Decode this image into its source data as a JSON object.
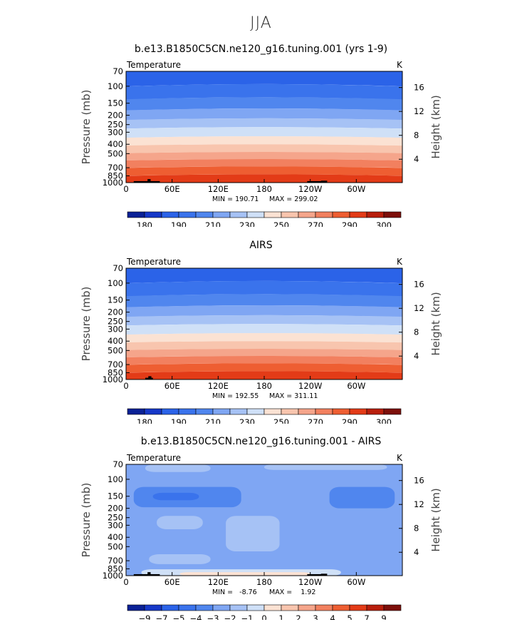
{
  "figure": {
    "super_title": "JJA"
  },
  "chart_data": [
    {
      "type": "heatmap",
      "title": "b.e13.B1850C5CN.ne120_g16.tuning.001 (yrs 1-9)",
      "variable": "Temperature",
      "units": "K",
      "ylabel": "Pressure (mb)",
      "y2label": "Height (km)",
      "xlabel": "",
      "x_tick_labels": [
        "0",
        "60E",
        "120E",
        "180",
        "120W",
        "60W"
      ],
      "x_tick_lons": [
        0,
        60,
        120,
        180,
        240,
        300
      ],
      "xlim": [
        0,
        360
      ],
      "y_tick_labels": [
        "70",
        "100",
        "150",
        "200",
        "250",
        "300",
        "400",
        "500",
        "700",
        "850",
        "1000"
      ],
      "y_tick_values": [
        70,
        100,
        150,
        200,
        250,
        300,
        400,
        500,
        700,
        850,
        1000
      ],
      "ylim_mb": [
        1000,
        70
      ],
      "y2_tick_labels": [
        "4",
        "8",
        "12",
        "16"
      ],
      "y2_tick_values": [
        4,
        8,
        12,
        16
      ],
      "stats": {
        "min_label": "MIN = 190.71",
        "max_label": "MAX = 299.02",
        "min": 190.71,
        "max": 299.02
      },
      "colorbar_labels": [
        "180",
        "190",
        "210",
        "230",
        "250",
        "270",
        "290",
        "300"
      ],
      "level_bands": [
        {
          "top_mb": 70,
          "bottom_mb": 95,
          "color": "#2B63E8"
        },
        {
          "top_mb": 95,
          "bottom_mb": 130,
          "color": "#3A73EC"
        },
        {
          "top_mb": 130,
          "bottom_mb": 170,
          "color": "#5086EE"
        },
        {
          "top_mb": 170,
          "bottom_mb": 215,
          "color": "#7FA6F3"
        },
        {
          "top_mb": 215,
          "bottom_mb": 265,
          "color": "#A6C2F5"
        },
        {
          "top_mb": 265,
          "bottom_mb": 330,
          "color": "#CFE0F7"
        },
        {
          "top_mb": 330,
          "bottom_mb": 400,
          "color": "#FBE2D3"
        },
        {
          "top_mb": 400,
          "bottom_mb": 480,
          "color": "#F8C5AE"
        },
        {
          "top_mb": 480,
          "bottom_mb": 570,
          "color": "#F5A58B"
        },
        {
          "top_mb": 570,
          "bottom_mb": 680,
          "color": "#F2805F"
        },
        {
          "top_mb": 680,
          "bottom_mb": 820,
          "color": "#EE5E32"
        },
        {
          "top_mb": 820,
          "bottom_mb": 1000,
          "color": "#E33B17"
        }
      ]
    },
    {
      "type": "heatmap",
      "title": "AIRS",
      "variable": "Temperature",
      "units": "K",
      "ylabel": "Pressure (mb)",
      "y2label": "Height (km)",
      "xlabel": "",
      "x_tick_labels": [
        "0",
        "60E",
        "120E",
        "180",
        "120W",
        "60W"
      ],
      "x_tick_lons": [
        0,
        60,
        120,
        180,
        240,
        300
      ],
      "xlim": [
        0,
        360
      ],
      "y_tick_labels": [
        "70",
        "100",
        "150",
        "200",
        "250",
        "300",
        "400",
        "500",
        "700",
        "850",
        "1000"
      ],
      "y_tick_values": [
        70,
        100,
        150,
        200,
        250,
        300,
        400,
        500,
        700,
        850,
        1000
      ],
      "ylim_mb": [
        1000,
        70
      ],
      "y2_tick_labels": [
        "4",
        "8",
        "12",
        "16"
      ],
      "y2_tick_values": [
        4,
        8,
        12,
        16
      ],
      "stats": {
        "min_label": "MIN = 192.55",
        "max_label": "MAX = 311.11",
        "min": 192.55,
        "max": 311.11
      },
      "colorbar_labels": [
        "180",
        "190",
        "210",
        "230",
        "250",
        "270",
        "290",
        "300"
      ],
      "level_bands": [
        {
          "top_mb": 70,
          "bottom_mb": 95,
          "color": "#2B63E8"
        },
        {
          "top_mb": 95,
          "bottom_mb": 130,
          "color": "#3A73EC"
        },
        {
          "top_mb": 130,
          "bottom_mb": 170,
          "color": "#5086EE"
        },
        {
          "top_mb": 170,
          "bottom_mb": 215,
          "color": "#7FA6F3"
        },
        {
          "top_mb": 215,
          "bottom_mb": 265,
          "color": "#A6C2F5"
        },
        {
          "top_mb": 265,
          "bottom_mb": 330,
          "color": "#CFE0F7"
        },
        {
          "top_mb": 330,
          "bottom_mb": 400,
          "color": "#FBE2D3"
        },
        {
          "top_mb": 400,
          "bottom_mb": 480,
          "color": "#F8C5AE"
        },
        {
          "top_mb": 480,
          "bottom_mb": 570,
          "color": "#F5A58B"
        },
        {
          "top_mb": 570,
          "bottom_mb": 680,
          "color": "#F2805F"
        },
        {
          "top_mb": 680,
          "bottom_mb": 820,
          "color": "#EE5E32"
        },
        {
          "top_mb": 820,
          "bottom_mb": 1000,
          "color": "#E33B17"
        }
      ]
    },
    {
      "type": "heatmap",
      "title": "b.e13.B1850C5CN.ne120_g16.tuning.001 - AIRS",
      "variable": "Temperature",
      "units": "K",
      "ylabel": "Pressure (mb)",
      "y2label": "Height (km)",
      "xlabel": "",
      "x_tick_labels": [
        "0",
        "60E",
        "120E",
        "180",
        "120W",
        "60W"
      ],
      "x_tick_lons": [
        0,
        60,
        120,
        180,
        240,
        300
      ],
      "xlim": [
        0,
        360
      ],
      "y_tick_labels": [
        "70",
        "100",
        "150",
        "200",
        "250",
        "300",
        "400",
        "500",
        "700",
        "850",
        "1000"
      ],
      "y_tick_values": [
        70,
        100,
        150,
        200,
        250,
        300,
        400,
        500,
        700,
        850,
        1000
      ],
      "ylim_mb": [
        1000,
        70
      ],
      "y2_tick_labels": [
        "4",
        "8",
        "12",
        "16"
      ],
      "y2_tick_values": [
        4,
        8,
        12,
        16
      ],
      "stats": {
        "min_label": "MIN =   -8.76",
        "max_label": "MAX =    1.92",
        "min": -8.76,
        "max": 1.92
      },
      "colorbar_labels": [
        "−9",
        "−7",
        "−5",
        "−4",
        "−3",
        "−2",
        "−1",
        "0",
        "1",
        "2",
        "3",
        "4",
        "5",
        "7",
        "9"
      ],
      "background_color": "#7FA6F3",
      "anomaly_regions": [
        {
          "lon_range": [
            25,
            110
          ],
          "mb_range": [
            70,
            84
          ],
          "value": -2,
          "color": "#A6C2F5"
        },
        {
          "lon_range": [
            180,
            340
          ],
          "mb_range": [
            70,
            80
          ],
          "value": -2,
          "color": "#A6C2F5"
        },
        {
          "lon_range": [
            10,
            150
          ],
          "mb_range": [
            120,
            195
          ],
          "value": -4,
          "color": "#5086EE"
        },
        {
          "lon_range": [
            35,
            95
          ],
          "mb_range": [
            138,
            165
          ],
          "value": -5,
          "color": "#3A73EC"
        },
        {
          "lon_range": [
            265,
            350
          ],
          "mb_range": [
            120,
            200
          ],
          "value": -4,
          "color": "#5086EE"
        },
        {
          "lon_range": [
            40,
            100
          ],
          "mb_range": [
            240,
            330
          ],
          "value": -2,
          "color": "#A6C2F5"
        },
        {
          "lon_range": [
            130,
            200
          ],
          "mb_range": [
            240,
            560
          ],
          "value": -2,
          "color": "#A6C2F5"
        },
        {
          "lon_range": [
            30,
            110
          ],
          "mb_range": [
            600,
            760
          ],
          "value": -2,
          "color": "#A6C2F5"
        },
        {
          "lon_range": [
            20,
            280
          ],
          "mb_range": [
            860,
            1000
          ],
          "value": -1,
          "color": "#CFE0F7"
        },
        {
          "lon_range": [
            70,
            240
          ],
          "mb_range": [
            920,
            1000
          ],
          "value": 0,
          "color": "#FBE2D3"
        }
      ]
    }
  ],
  "colorbar_palette_temperature": [
    "#0A2196",
    "#1638C8",
    "#2B63E8",
    "#3A73EC",
    "#5086EE",
    "#7FA6F3",
    "#A6C2F5",
    "#CFE0F7",
    "#FBE2D3",
    "#F8C5AE",
    "#F5A58B",
    "#F2805F",
    "#EE5E32",
    "#E33B17",
    "#B81E0C",
    "#7D0F0A"
  ],
  "colorbar_palette_difference": [
    "#0A2196",
    "#1638C8",
    "#2B63E8",
    "#3A73EC",
    "#5086EE",
    "#7FA6F3",
    "#A6C2F5",
    "#CFE0F7",
    "#FBE2D3",
    "#F8C5AE",
    "#F5A58B",
    "#F2805F",
    "#EE5E32",
    "#E33B17",
    "#B81E0C",
    "#7D0F0A"
  ],
  "terrain_color": "#000000"
}
